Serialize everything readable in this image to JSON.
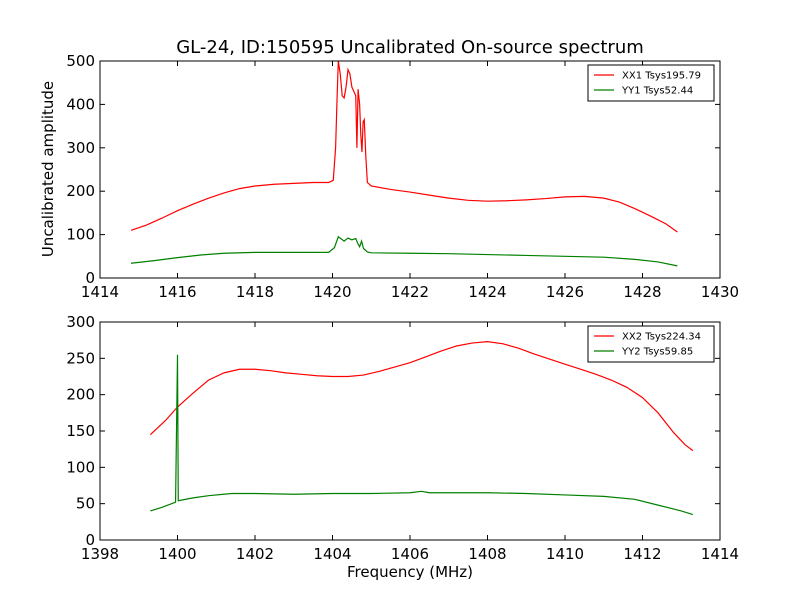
{
  "title": "GL-24, ID:150595 Uncalibrated On-source spectrum",
  "chart_data": [
    {
      "type": "line",
      "title": "GL-24, ID:150595 Uncalibrated On-source spectrum",
      "xlabel": "",
      "ylabel": "Uncalibrated amplitude",
      "xlim": [
        1414,
        1430
      ],
      "ylim": [
        0,
        500
      ],
      "xticks": [
        "1414",
        "1416",
        "1418",
        "1420",
        "1422",
        "1424",
        "1426",
        "1428",
        "1430"
      ],
      "yticks": [
        "0",
        "100",
        "200",
        "300",
        "400",
        "500"
      ],
      "legend_position": "top-right",
      "series": [
        {
          "name": "XX1 Tsys195.79",
          "color": "#ff0000",
          "points": [
            [
              1414.8,
              110
            ],
            [
              1415.2,
              122
            ],
            [
              1415.6,
              138
            ],
            [
              1416.0,
              155
            ],
            [
              1416.4,
              170
            ],
            [
              1416.8,
              184
            ],
            [
              1417.2,
              196
            ],
            [
              1417.6,
              206
            ],
            [
              1418.0,
              212
            ],
            [
              1418.5,
              216
            ],
            [
              1419.0,
              218
            ],
            [
              1419.5,
              220
            ],
            [
              1419.9,
              220
            ],
            [
              1420.02,
              225
            ],
            [
              1420.08,
              300
            ],
            [
              1420.12,
              420
            ],
            [
              1420.15,
              500
            ],
            [
              1420.2,
              470
            ],
            [
              1420.25,
              420
            ],
            [
              1420.3,
              415
            ],
            [
              1420.35,
              440
            ],
            [
              1420.4,
              480
            ],
            [
              1420.45,
              470
            ],
            [
              1420.5,
              440
            ],
            [
              1420.55,
              430
            ],
            [
              1420.6,
              420
            ],
            [
              1420.63,
              300
            ],
            [
              1420.66,
              435
            ],
            [
              1420.7,
              400
            ],
            [
              1420.73,
              330
            ],
            [
              1420.76,
              290
            ],
            [
              1420.79,
              360
            ],
            [
              1420.82,
              365
            ],
            [
              1420.86,
              280
            ],
            [
              1420.9,
              220
            ],
            [
              1421.0,
              212
            ],
            [
              1421.5,
              204
            ],
            [
              1422.0,
              198
            ],
            [
              1422.5,
              191
            ],
            [
              1423.0,
              184
            ],
            [
              1423.5,
              179
            ],
            [
              1424.0,
              177
            ],
            [
              1424.5,
              178
            ],
            [
              1425.0,
              180
            ],
            [
              1425.5,
              183
            ],
            [
              1426.0,
              187
            ],
            [
              1426.5,
              188
            ],
            [
              1427.0,
              184
            ],
            [
              1427.4,
              175
            ],
            [
              1427.8,
              160
            ],
            [
              1428.2,
              143
            ],
            [
              1428.6,
              125
            ],
            [
              1428.9,
              106
            ]
          ]
        },
        {
          "name": "YY1 Tsys52.44",
          "color": "#008000",
          "points": [
            [
              1414.8,
              34
            ],
            [
              1415.4,
              40
            ],
            [
              1416.0,
              47
            ],
            [
              1416.6,
              53
            ],
            [
              1417.2,
              57
            ],
            [
              1418.0,
              59
            ],
            [
              1419.0,
              59
            ],
            [
              1419.9,
              59
            ],
            [
              1420.05,
              70
            ],
            [
              1420.15,
              95
            ],
            [
              1420.3,
              85
            ],
            [
              1420.4,
              92
            ],
            [
              1420.5,
              88
            ],
            [
              1420.6,
              91
            ],
            [
              1420.65,
              80
            ],
            [
              1420.7,
              72
            ],
            [
              1420.75,
              85
            ],
            [
              1420.8,
              68
            ],
            [
              1420.9,
              60
            ],
            [
              1421.0,
              58
            ],
            [
              1422.0,
              57
            ],
            [
              1423.0,
              56
            ],
            [
              1424.0,
              54
            ],
            [
              1425.0,
              52
            ],
            [
              1426.0,
              50
            ],
            [
              1427.0,
              48
            ],
            [
              1427.8,
              43
            ],
            [
              1428.4,
              37
            ],
            [
              1428.9,
              28
            ]
          ]
        }
      ]
    },
    {
      "type": "line",
      "title": "",
      "xlabel": "Frequency (MHz)",
      "ylabel": "",
      "xlim": [
        1398,
        1414
      ],
      "ylim": [
        0,
        300
      ],
      "xticks": [
        "1398",
        "1400",
        "1402",
        "1404",
        "1406",
        "1408",
        "1410",
        "1412",
        "1414"
      ],
      "yticks": [
        "0",
        "50",
        "100",
        "150",
        "200",
        "250",
        "300"
      ],
      "legend_position": "top-right",
      "series": [
        {
          "name": "XX2 Tsys224.34",
          "color": "#ff0000",
          "points": [
            [
              1399.3,
              145
            ],
            [
              1399.7,
              165
            ],
            [
              1400.0,
              183
            ],
            [
              1400.4,
              202
            ],
            [
              1400.8,
              220
            ],
            [
              1401.2,
              230
            ],
            [
              1401.6,
              235
            ],
            [
              1402.0,
              235
            ],
            [
              1402.4,
              233
            ],
            [
              1402.8,
              230
            ],
            [
              1403.2,
              228
            ],
            [
              1403.6,
              226
            ],
            [
              1404.0,
              225
            ],
            [
              1404.4,
              225
            ],
            [
              1404.8,
              227
            ],
            [
              1405.2,
              232
            ],
            [
              1405.6,
              238
            ],
            [
              1406.0,
              244
            ],
            [
              1406.4,
              252
            ],
            [
              1406.8,
              260
            ],
            [
              1407.2,
              267
            ],
            [
              1407.6,
              271
            ],
            [
              1408.0,
              273
            ],
            [
              1408.4,
              270
            ],
            [
              1408.8,
              264
            ],
            [
              1409.2,
              256
            ],
            [
              1409.6,
              249
            ],
            [
              1410.0,
              242
            ],
            [
              1410.4,
              235
            ],
            [
              1410.8,
              228
            ],
            [
              1411.2,
              220
            ],
            [
              1411.6,
              210
            ],
            [
              1412.0,
              196
            ],
            [
              1412.4,
              175
            ],
            [
              1412.8,
              148
            ],
            [
              1413.1,
              131
            ],
            [
              1413.3,
              123
            ]
          ]
        },
        {
          "name": "YY2 Tsys59.85",
          "color": "#008000",
          "points": [
            [
              1399.3,
              40
            ],
            [
              1399.6,
              45
            ],
            [
              1399.95,
              52
            ],
            [
              1400.0,
              255
            ],
            [
              1400.02,
              54
            ],
            [
              1400.4,
              58
            ],
            [
              1400.8,
              61
            ],
            [
              1401.4,
              64
            ],
            [
              1402.0,
              64
            ],
            [
              1403.0,
              63
            ],
            [
              1404.0,
              64
            ],
            [
              1405.0,
              64
            ],
            [
              1406.0,
              65
            ],
            [
              1406.3,
              67
            ],
            [
              1406.5,
              65
            ],
            [
              1407.0,
              65
            ],
            [
              1408.0,
              65
            ],
            [
              1409.0,
              64
            ],
            [
              1410.0,
              62
            ],
            [
              1411.0,
              60
            ],
            [
              1411.8,
              56
            ],
            [
              1412.4,
              48
            ],
            [
              1413.0,
              40
            ],
            [
              1413.3,
              35
            ]
          ]
        }
      ]
    }
  ]
}
